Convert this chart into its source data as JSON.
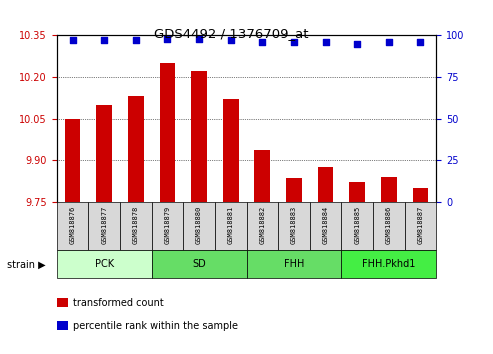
{
  "title": "GDS4492 / 1376709_at",
  "samples": [
    "GSM818876",
    "GSM818877",
    "GSM818878",
    "GSM818879",
    "GSM818880",
    "GSM818881",
    "GSM818882",
    "GSM818883",
    "GSM818884",
    "GSM818885",
    "GSM818886",
    "GSM818887"
  ],
  "bar_values": [
    10.05,
    10.1,
    10.13,
    10.25,
    10.22,
    10.12,
    9.935,
    9.835,
    9.875,
    9.82,
    9.84,
    9.8
  ],
  "percentile_values": [
    97,
    97,
    97,
    98,
    98,
    97,
    96,
    96,
    96,
    95,
    96,
    96
  ],
  "bar_color": "#cc0000",
  "dot_color": "#0000cc",
  "ylim_left": [
    9.75,
    10.35
  ],
  "ylim_right": [
    0,
    100
  ],
  "yticks_left": [
    9.75,
    9.9,
    10.05,
    10.2,
    10.35
  ],
  "yticks_right": [
    0,
    25,
    50,
    75,
    100
  ],
  "group_defs": [
    {
      "label": "PCK",
      "indices": [
        0,
        1,
        2
      ],
      "color": "#ccffcc"
    },
    {
      "label": "SD",
      "indices": [
        3,
        4,
        5
      ],
      "color": "#66dd66"
    },
    {
      "label": "FHH",
      "indices": [
        6,
        7,
        8
      ],
      "color": "#66dd66"
    },
    {
      "label": "FHH.Pkhd1",
      "indices": [
        9,
        10,
        11
      ],
      "color": "#44ee44"
    }
  ],
  "legend_items": [
    {
      "label": "transformed count",
      "color": "#cc0000"
    },
    {
      "label": "percentile rank within the sample",
      "color": "#0000cc"
    }
  ],
  "bar_width": 0.5,
  "axis_label_color_left": "#cc0000",
  "axis_label_color_right": "#0000cc",
  "strain_label": "strain"
}
